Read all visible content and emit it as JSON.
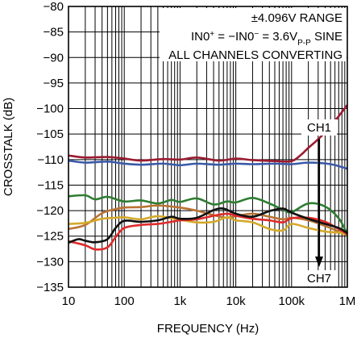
{
  "chart_data": {
    "type": "line",
    "xlabel": "FREQUENCY (Hz)",
    "ylabel": "CROSSTALK (dB)",
    "x_scale": "log",
    "xlim": [
      10,
      1000000
    ],
    "ylim": [
      -135,
      -80
    ],
    "grid": true,
    "x_ticks": [
      10,
      100,
      1000,
      10000,
      100000,
      1000000
    ],
    "x_tick_labels": [
      "10",
      "100",
      "1k",
      "10k",
      "100k",
      "1M"
    ],
    "y_ticks": [
      -80,
      -85,
      -90,
      -95,
      -100,
      -105,
      -110,
      -115,
      -120,
      -125,
      -130,
      -135
    ],
    "y_tick_labels": [
      "−80",
      "−85",
      "−90",
      "−95",
      "−100",
      "−105",
      "−110",
      "−115",
      "−120",
      "−125",
      "−130",
      "−135"
    ],
    "annotations": {
      "line1": "±4.096V RANGE",
      "line2_a": "IN0",
      "line2_b": "+",
      "line2_c": " = −IN0",
      "line2_d": "−",
      "line2_e": " = 3.6V",
      "line2_f": "P-P",
      "line2_g": " SINE",
      "line3": "ALL CHANNELS CONVERTING",
      "arrow_top": "CH1",
      "arrow_bottom": "CH7"
    },
    "series": [
      {
        "color": "#9b1b30",
        "points": [
          [
            10,
            -109.2
          ],
          [
            20,
            -109.6
          ],
          [
            50,
            -109.5
          ],
          [
            100,
            -109.8
          ],
          [
            200,
            -110.2
          ],
          [
            500,
            -109.9
          ],
          [
            1000,
            -110.0
          ],
          [
            2000,
            -109.6
          ],
          [
            5000,
            -110.2
          ],
          [
            10000,
            -109.8
          ],
          [
            20000,
            -110.1
          ],
          [
            50000,
            -110.3
          ],
          [
            100000,
            -110.3
          ],
          [
            150000,
            -109.0
          ],
          [
            200000,
            -107.7
          ],
          [
            300000,
            -106.0
          ],
          [
            500000,
            -103.5
          ],
          [
            1000000,
            -99.3
          ]
        ]
      },
      {
        "color": "#3a5aa8",
        "points": [
          [
            10,
            -110.2
          ],
          [
            20,
            -110.6
          ],
          [
            50,
            -110.4
          ],
          [
            100,
            -110.8
          ],
          [
            200,
            -111.0
          ],
          [
            500,
            -110.8
          ],
          [
            1000,
            -111.1
          ],
          [
            2000,
            -110.8
          ],
          [
            5000,
            -111.0
          ],
          [
            10000,
            -110.8
          ],
          [
            20000,
            -110.9
          ],
          [
            50000,
            -110.8
          ],
          [
            100000,
            -110.9
          ],
          [
            200000,
            -110.6
          ],
          [
            500000,
            -110.9
          ],
          [
            1000000,
            -111.8
          ]
        ]
      },
      {
        "color": "#2e7d32",
        "points": [
          [
            10,
            -117.2
          ],
          [
            20,
            -117.0
          ],
          [
            30,
            -117.8
          ],
          [
            50,
            -117.3
          ],
          [
            100,
            -118.2
          ],
          [
            200,
            -118.0
          ],
          [
            400,
            -118.6
          ],
          [
            700,
            -117.9
          ],
          [
            1000,
            -118.3
          ],
          [
            2000,
            -117.6
          ],
          [
            4000,
            -118.8
          ],
          [
            7000,
            -118.2
          ],
          [
            10000,
            -118.4
          ],
          [
            20000,
            -117.5
          ],
          [
            40000,
            -118.6
          ],
          [
            70000,
            -119.8
          ],
          [
            100000,
            -120.3
          ],
          [
            200000,
            -118.6
          ],
          [
            400000,
            -119.2
          ],
          [
            700000,
            -121.5
          ],
          [
            1000000,
            -124.6
          ]
        ]
      },
      {
        "color": "#b87333",
        "points": [
          [
            10,
            -123.6
          ],
          [
            20,
            -122.8
          ],
          [
            40,
            -120.5
          ],
          [
            70,
            -119.7
          ],
          [
            100,
            -119.4
          ],
          [
            200,
            -119.3
          ],
          [
            400,
            -119.0
          ],
          [
            1000,
            -119.4
          ],
          [
            2000,
            -120.0
          ],
          [
            4000,
            -120.9
          ],
          [
            7000,
            -121.4
          ],
          [
            10000,
            -121.1
          ],
          [
            20000,
            -120.6
          ],
          [
            40000,
            -121.2
          ],
          [
            70000,
            -121.7
          ],
          [
            100000,
            -121.4
          ],
          [
            200000,
            -121.9
          ],
          [
            400000,
            -123.0
          ],
          [
            700000,
            -124.1
          ],
          [
            1000000,
            -124.9
          ]
        ]
      },
      {
        "color": "#d4a92a",
        "points": [
          [
            10,
            -122.6
          ],
          [
            20,
            -122.4
          ],
          [
            40,
            -121.6
          ],
          [
            70,
            -121.4
          ],
          [
            100,
            -121.3
          ],
          [
            200,
            -121.7
          ],
          [
            400,
            -121.1
          ],
          [
            1000,
            -121.8
          ],
          [
            2000,
            -122.3
          ],
          [
            4000,
            -122.2
          ],
          [
            7000,
            -121.3
          ],
          [
            10000,
            -121.9
          ],
          [
            20000,
            -122.3
          ],
          [
            40000,
            -123.6
          ],
          [
            70000,
            -123.9
          ],
          [
            100000,
            -122.6
          ],
          [
            200000,
            -123.4
          ],
          [
            400000,
            -124.1
          ],
          [
            700000,
            -124.3
          ],
          [
            1000000,
            -124.6
          ]
        ]
      },
      {
        "color": "#e02b2b",
        "points": [
          [
            10,
            -126.0
          ],
          [
            20,
            -126.8
          ],
          [
            30,
            -127.6
          ],
          [
            50,
            -127.2
          ],
          [
            70,
            -125.2
          ],
          [
            100,
            -123.4
          ],
          [
            200,
            -122.8
          ],
          [
            400,
            -122.6
          ],
          [
            700,
            -122.2
          ],
          [
            1000,
            -121.9
          ],
          [
            2000,
            -121.7
          ],
          [
            4000,
            -121.0
          ],
          [
            7000,
            -120.6
          ],
          [
            10000,
            -121.0
          ],
          [
            20000,
            -121.6
          ],
          [
            40000,
            -121.9
          ],
          [
            70000,
            -122.3
          ],
          [
            100000,
            -121.5
          ],
          [
            200000,
            -121.4
          ],
          [
            400000,
            -122.2
          ],
          [
            700000,
            -123.6
          ],
          [
            1000000,
            -124.6
          ]
        ]
      },
      {
        "color": "#111111",
        "points": [
          [
            10,
            -126.3
          ],
          [
            15,
            -125.6
          ],
          [
            20,
            -125.9
          ],
          [
            30,
            -126.2
          ],
          [
            50,
            -125.6
          ],
          [
            70,
            -123.4
          ],
          [
            100,
            -122.0
          ],
          [
            200,
            -122.2
          ],
          [
            400,
            -121.9
          ],
          [
            700,
            -121.2
          ],
          [
            1000,
            -121.6
          ],
          [
            2000,
            -121.4
          ],
          [
            4000,
            -119.9
          ],
          [
            6000,
            -119.6
          ],
          [
            10000,
            -120.6
          ],
          [
            20000,
            -121.2
          ],
          [
            40000,
            -120.1
          ],
          [
            70000,
            -119.6
          ],
          [
            100000,
            -120.4
          ],
          [
            200000,
            -121.6
          ],
          [
            400000,
            -122.6
          ],
          [
            700000,
            -123.4
          ],
          [
            1000000,
            -124.4
          ]
        ]
      }
    ]
  }
}
